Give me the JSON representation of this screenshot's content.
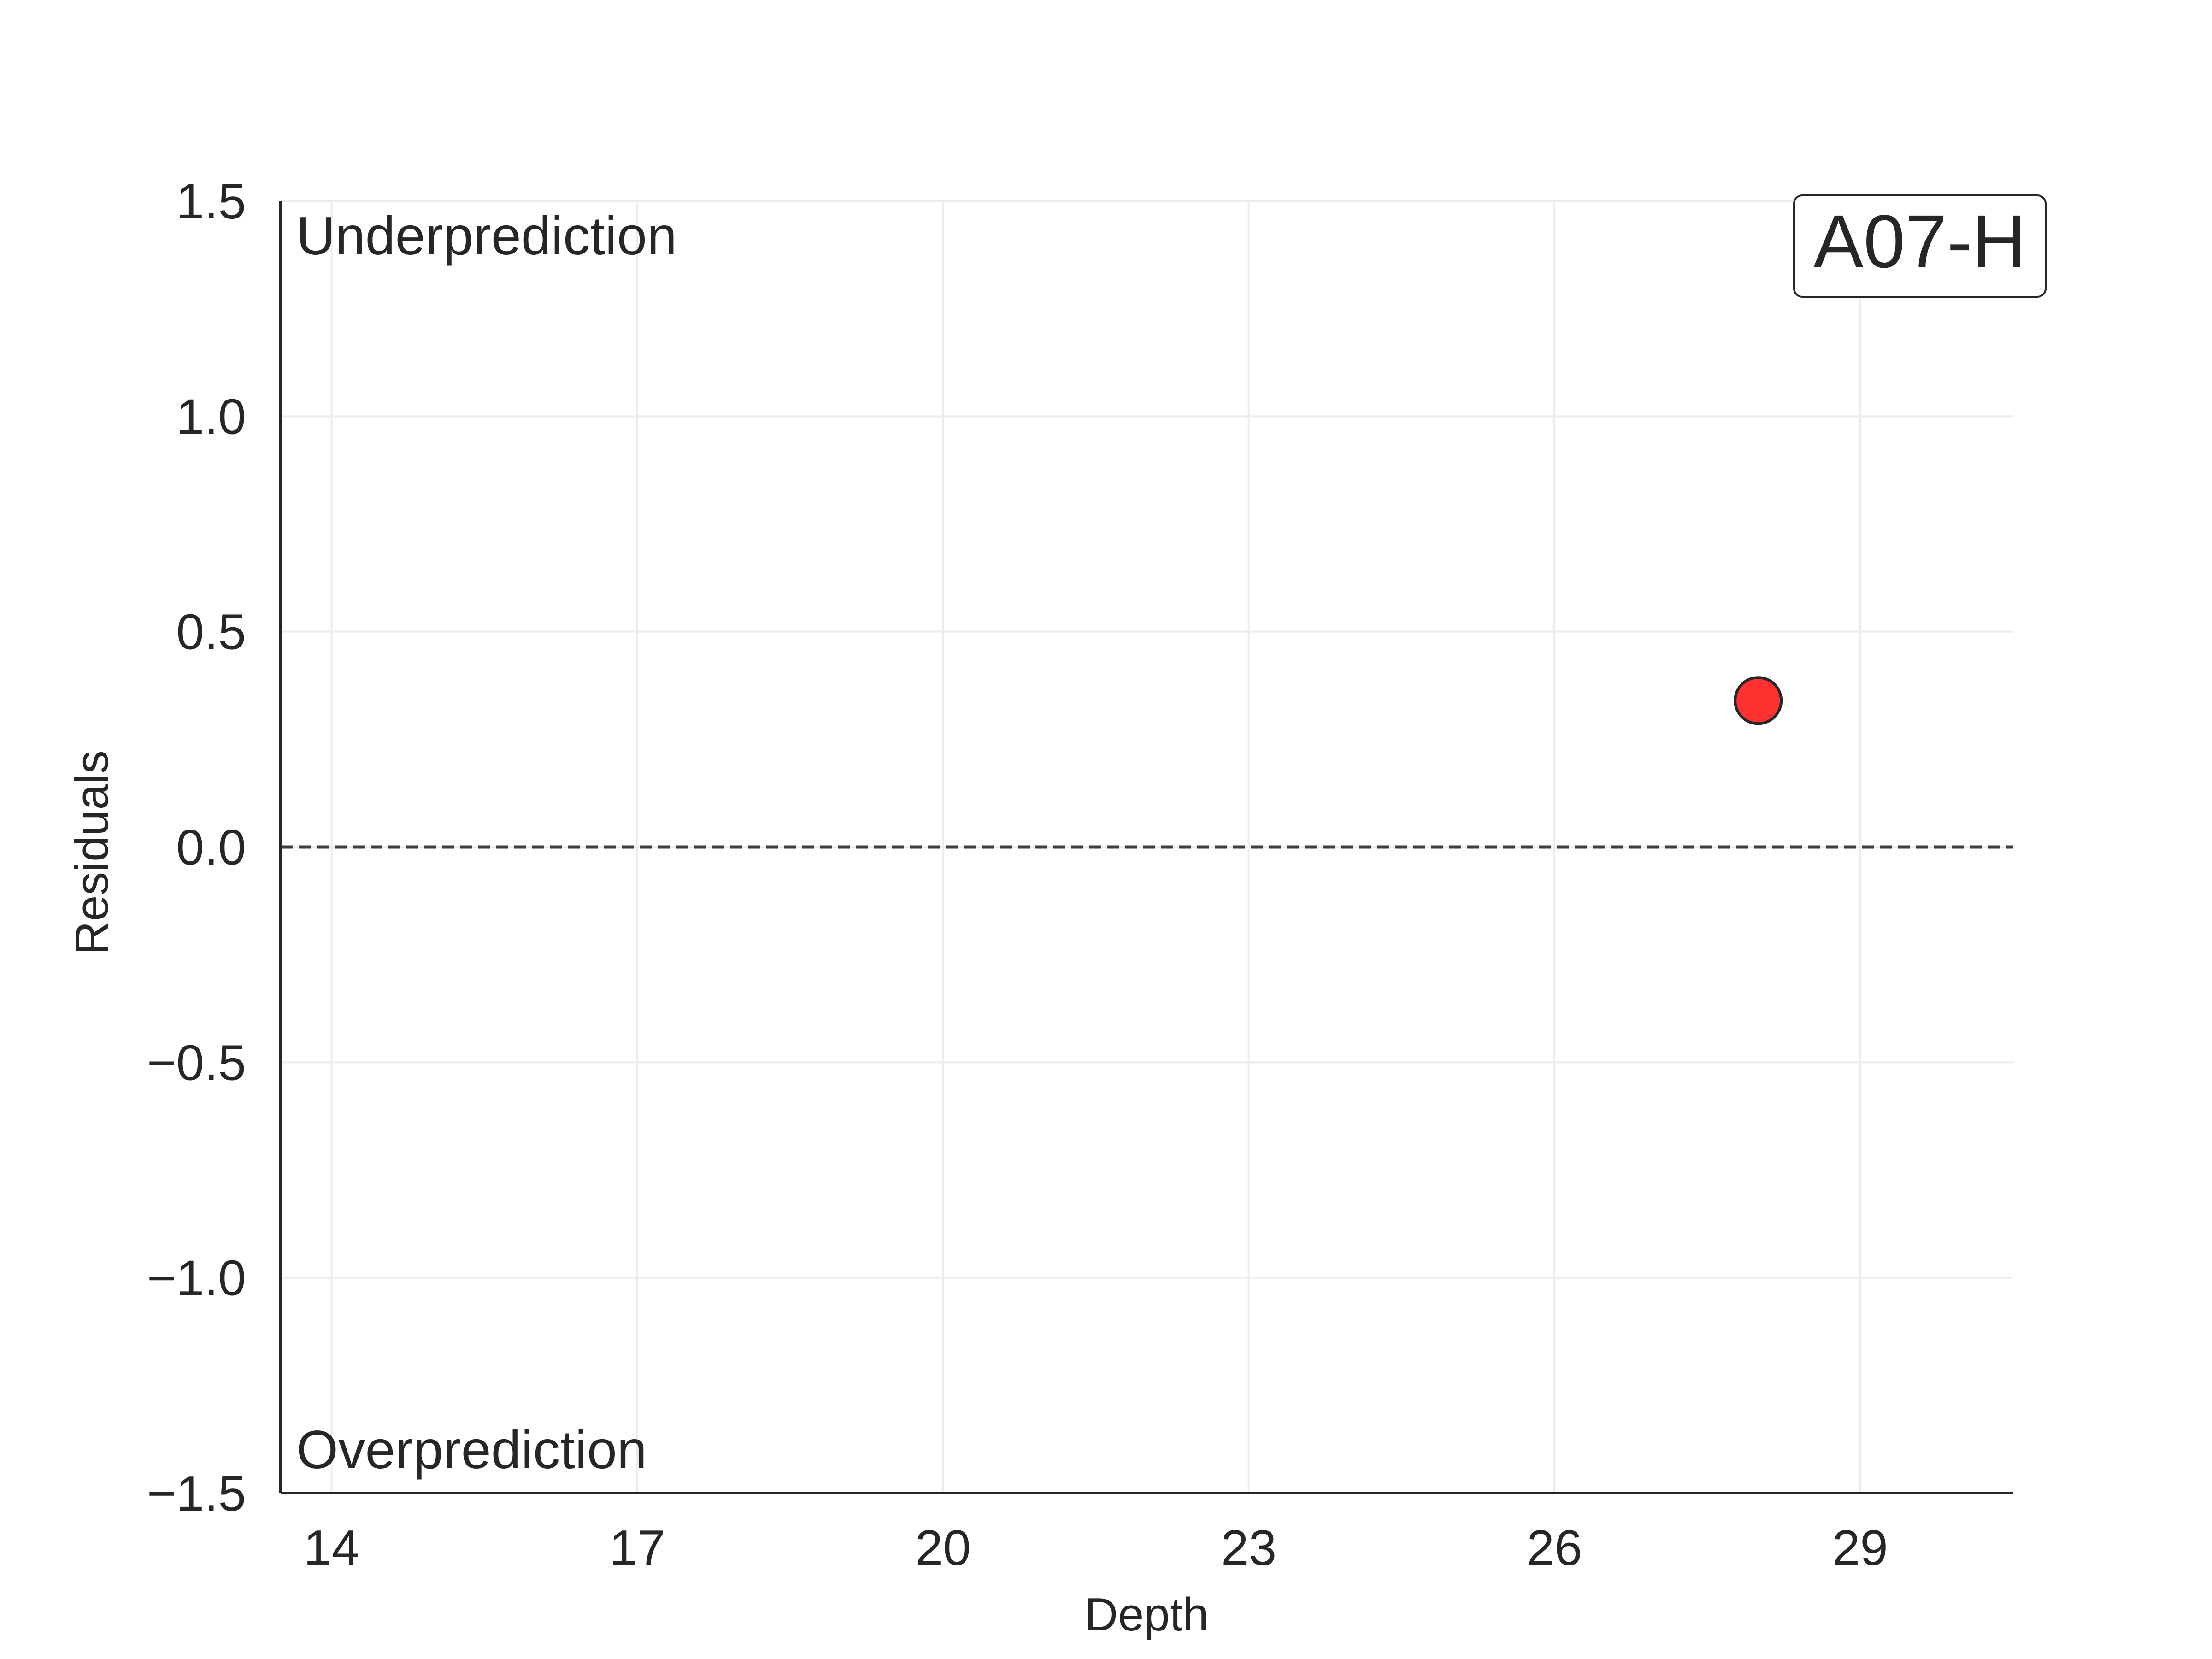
{
  "chart_data": {
    "type": "scatter",
    "title": "",
    "xlabel": "Depth",
    "ylabel": "Residuals",
    "xlim": [
      13.5,
      30.5
    ],
    "ylim": [
      -1.5,
      1.5
    ],
    "xticks": [
      14,
      17,
      20,
      23,
      26,
      29
    ],
    "xtick_labels": [
      "14",
      "17",
      "20",
      "23",
      "26",
      "29"
    ],
    "yticks": [
      -1.5,
      -1.0,
      -0.5,
      0.0,
      0.5,
      1.0,
      1.5
    ],
    "ytick_labels": [
      "−1.5",
      "−1.0",
      "−0.5",
      "0.0",
      "0.5",
      "1.0",
      "1.5"
    ],
    "grid": true,
    "reference_line": {
      "y": 0,
      "style": "dashed",
      "color": "#3d3d3d"
    },
    "series": [
      {
        "points": [
          {
            "x": 28.0,
            "y": 0.34
          }
        ],
        "color": "#ff3030",
        "edge_color": "#262626"
      }
    ],
    "annotations": {
      "top": "Underprediction",
      "bottom": "Overprediction",
      "badge": "A07-H"
    }
  }
}
